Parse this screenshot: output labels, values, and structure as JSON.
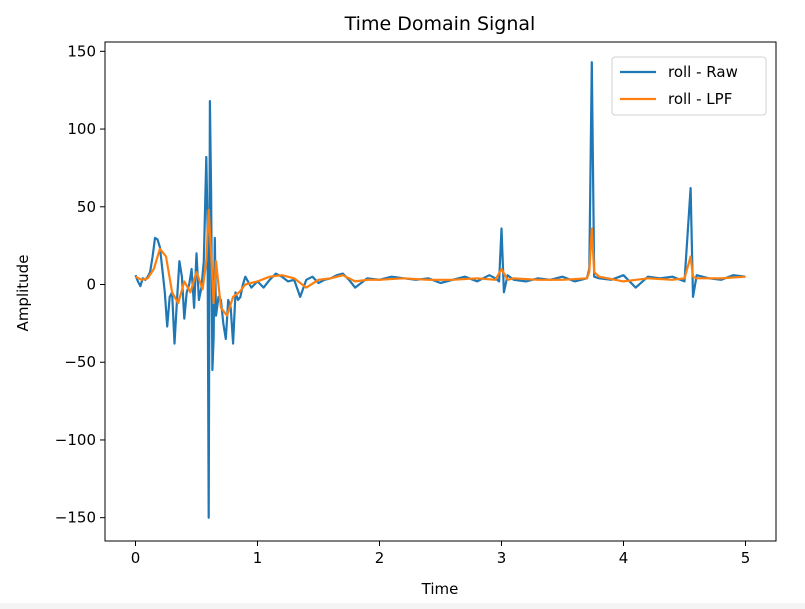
{
  "chart_data": {
    "type": "line",
    "title": "Time Domain Signal",
    "xlabel": "Time",
    "ylabel": "Amplitude",
    "xlim": [
      -0.25,
      5.25
    ],
    "ylim": [
      -165,
      156
    ],
    "xticks": [
      0,
      1,
      2,
      3,
      4,
      5
    ],
    "xtick_labels": [
      "0",
      "1",
      "2",
      "3",
      "4",
      "5"
    ],
    "yticks": [
      -150,
      -100,
      -50,
      0,
      50,
      100,
      150
    ],
    "ytick_labels": [
      "−150",
      "−100",
      "−50",
      "0",
      "50",
      "100",
      "150"
    ],
    "grid": false,
    "legend_position": "upper-right",
    "series": [
      {
        "name": "roll - Raw",
        "color": "#1f77b4",
        "x": [
          0.0,
          0.02,
          0.04,
          0.06,
          0.08,
          0.1,
          0.12,
          0.14,
          0.16,
          0.18,
          0.2,
          0.22,
          0.24,
          0.26,
          0.28,
          0.3,
          0.32,
          0.34,
          0.36,
          0.38,
          0.4,
          0.42,
          0.44,
          0.46,
          0.48,
          0.5,
          0.52,
          0.54,
          0.56,
          0.58,
          0.59,
          0.6,
          0.61,
          0.62,
          0.63,
          0.64,
          0.65,
          0.66,
          0.68,
          0.7,
          0.72,
          0.74,
          0.76,
          0.78,
          0.8,
          0.82,
          0.84,
          0.86,
          0.88,
          0.9,
          0.95,
          1.0,
          1.05,
          1.1,
          1.15,
          1.2,
          1.25,
          1.3,
          1.35,
          1.4,
          1.45,
          1.5,
          1.55,
          1.6,
          1.65,
          1.7,
          1.75,
          1.8,
          1.9,
          2.0,
          2.1,
          2.2,
          2.3,
          2.4,
          2.5,
          2.6,
          2.7,
          2.8,
          2.9,
          2.95,
          2.98,
          3.0,
          3.02,
          3.05,
          3.1,
          3.2,
          3.3,
          3.4,
          3.5,
          3.6,
          3.7,
          3.72,
          3.74,
          3.76,
          3.8,
          3.9,
          4.0,
          4.1,
          4.2,
          4.3,
          4.4,
          4.5,
          4.55,
          4.57,
          4.6,
          4.7,
          4.8,
          4.9,
          5.0
        ],
        "y": [
          6,
          2,
          -1,
          4,
          3,
          5,
          8,
          18,
          30,
          29,
          24,
          10,
          -5,
          -27,
          -8,
          -5,
          -38,
          -10,
          15,
          5,
          -22,
          -5,
          0,
          10,
          -15,
          20,
          -10,
          -2,
          15,
          82,
          40,
          -150,
          118,
          60,
          -55,
          -35,
          30,
          -20,
          -8,
          -10,
          -25,
          -35,
          -10,
          -15,
          -38,
          -5,
          -10,
          -8,
          0,
          5,
          -2,
          2,
          -2,
          3,
          7,
          5,
          2,
          3,
          -8,
          3,
          5,
          1,
          3,
          4,
          6,
          7,
          3,
          -2,
          4,
          3,
          5,
          4,
          3,
          4,
          1,
          3,
          5,
          2,
          6,
          4,
          2,
          36,
          -5,
          6,
          3,
          2,
          4,
          3,
          5,
          2,
          4,
          10,
          143,
          5,
          4,
          3,
          6,
          -2,
          5,
          4,
          5,
          2,
          62,
          -8,
          6,
          4,
          3,
          6,
          5
        ]
      },
      {
        "name": "roll - LPF",
        "color": "#ff7f0e",
        "x": [
          0.0,
          0.05,
          0.1,
          0.15,
          0.2,
          0.25,
          0.3,
          0.35,
          0.4,
          0.45,
          0.5,
          0.55,
          0.58,
          0.6,
          0.62,
          0.64,
          0.66,
          0.7,
          0.75,
          0.8,
          0.85,
          0.9,
          1.0,
          1.1,
          1.2,
          1.3,
          1.4,
          1.5,
          1.6,
          1.7,
          1.8,
          1.9,
          2.0,
          2.2,
          2.4,
          2.6,
          2.8,
          2.95,
          3.0,
          3.05,
          3.1,
          3.3,
          3.5,
          3.7,
          3.72,
          3.74,
          3.76,
          3.8,
          4.0,
          4.2,
          4.4,
          4.5,
          4.55,
          4.57,
          4.6,
          4.8,
          5.0
        ],
        "y": [
          5,
          3,
          4,
          10,
          23,
          18,
          -5,
          -12,
          2,
          -5,
          8,
          -3,
          15,
          48,
          20,
          -12,
          15,
          -15,
          -20,
          -8,
          -5,
          0,
          2,
          5,
          6,
          4,
          -2,
          3,
          4,
          6,
          2,
          3,
          3,
          4,
          3,
          3,
          4,
          3,
          10,
          3,
          4,
          3,
          3,
          4,
          8,
          36,
          8,
          5,
          2,
          4,
          3,
          4,
          18,
          5,
          4,
          4,
          5
        ]
      }
    ]
  }
}
